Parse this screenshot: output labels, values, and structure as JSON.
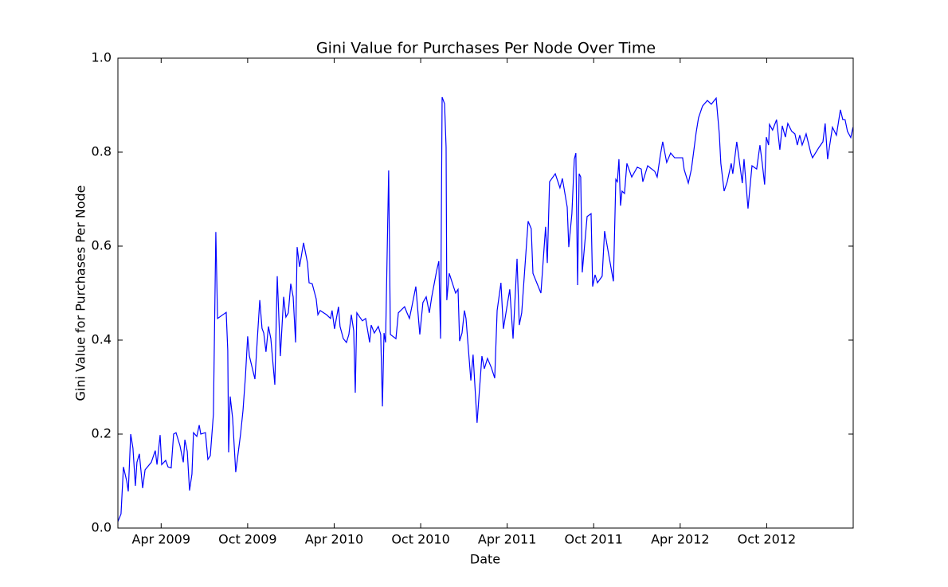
{
  "chart_data": {
    "type": "line",
    "title": "Gini Value for Purchases Per Node Over Time",
    "x_label": "Date",
    "y_label": "Gini Value for Purchases Per Node",
    "color": "#0000ff",
    "xlim": [
      2009.0,
      2013.25
    ],
    "xticks": [
      {
        "value": 2009.25,
        "label": "Apr 2009"
      },
      {
        "value": 2009.75,
        "label": "Oct 2009"
      },
      {
        "value": 2010.25,
        "label": "Apr 2010"
      },
      {
        "value": 2010.75,
        "label": "Oct 2010"
      },
      {
        "value": 2011.25,
        "label": "Apr 2011"
      },
      {
        "value": 2011.75,
        "label": "Oct 2011"
      },
      {
        "value": 2012.25,
        "label": "Apr 2012"
      },
      {
        "value": 2012.75,
        "label": "Oct 2012"
      }
    ],
    "ylim": [
      0,
      1
    ],
    "yticks": [
      {
        "value": 0,
        "label": "0.0"
      },
      0.2,
      0.4,
      0.6,
      0.8,
      {
        "value": 1,
        "label": "1.0"
      }
    ],
    "x": [
      2009.0,
      2009.018,
      2009.032,
      2009.051,
      2009.06,
      2009.074,
      2009.087,
      2009.101,
      2009.11,
      2009.124,
      2009.143,
      2009.157,
      2009.193,
      2009.216,
      2009.226,
      2009.244,
      2009.253,
      2009.276,
      2009.29,
      2009.308,
      2009.322,
      2009.336,
      2009.359,
      2009.378,
      2009.387,
      2009.401,
      2009.414,
      2009.428,
      2009.437,
      2009.456,
      2009.47,
      2009.479,
      2009.506,
      2009.52,
      2009.534,
      2009.552,
      2009.566,
      2009.576,
      2009.626,
      2009.635,
      2009.64,
      2009.649,
      2009.663,
      2009.681,
      2009.709,
      2009.723,
      2009.737,
      2009.75,
      2009.76,
      2009.792,
      2009.806,
      2009.82,
      2009.833,
      2009.843,
      2009.856,
      2009.87,
      2009.884,
      2009.907,
      2009.921,
      2009.939,
      2009.958,
      2009.971,
      2009.985,
      2009.999,
      2010.013,
      2010.027,
      2010.036,
      2010.05,
      2010.073,
      2010.096,
      2010.105,
      2010.123,
      2010.146,
      2010.156,
      2010.169,
      2010.206,
      2010.229,
      2010.238,
      2010.252,
      2010.275,
      2010.284,
      2010.303,
      2010.321,
      2010.335,
      2010.349,
      2010.363,
      2010.372,
      2010.381,
      2010.413,
      2010.432,
      2010.446,
      2010.455,
      2010.464,
      2010.482,
      2010.505,
      2010.519,
      2010.529,
      2010.538,
      2010.547,
      2010.565,
      2010.575,
      2010.607,
      2010.621,
      2010.657,
      2010.671,
      2010.685,
      2010.699,
      2010.722,
      2010.745,
      2010.763,
      2010.782,
      2010.8,
      2010.814,
      2010.842,
      2010.855,
      2010.865,
      2010.874,
      2010.888,
      2010.897,
      2010.901,
      2010.915,
      2010.952,
      2010.966,
      2010.975,
      2010.989,
      2011.003,
      2011.012,
      2011.04,
      2011.053,
      2011.076,
      2011.104,
      2011.118,
      2011.136,
      2011.159,
      2011.178,
      2011.192,
      2011.214,
      2011.228,
      2011.265,
      2011.284,
      2011.307,
      2011.32,
      2011.334,
      2011.371,
      2011.389,
      2011.399,
      2011.445,
      2011.472,
      2011.482,
      2011.495,
      2011.528,
      2011.555,
      2011.569,
      2011.597,
      2011.606,
      2011.624,
      2011.638,
      2011.647,
      2011.657,
      2011.666,
      2011.675,
      2011.684,
      2011.712,
      2011.735,
      2011.744,
      2011.758,
      2011.772,
      2011.799,
      2011.813,
      2011.864,
      2011.878,
      2011.887,
      2011.896,
      2011.905,
      2011.914,
      2011.928,
      2011.942,
      2011.97,
      2012.002,
      2012.025,
      2012.034,
      2012.062,
      2012.103,
      2012.117,
      2012.135,
      2012.149,
      2012.172,
      2012.195,
      2012.218,
      2012.264,
      2012.273,
      2012.297,
      2012.315,
      2012.342,
      2012.356,
      2012.379,
      2012.407,
      2012.43,
      2012.458,
      2012.476,
      2012.485,
      2012.504,
      2012.522,
      2012.545,
      2012.554,
      2012.577,
      2012.609,
      2012.619,
      2012.642,
      2012.665,
      2012.692,
      2012.711,
      2012.725,
      2012.738,
      2012.748,
      2012.761,
      2012.766,
      2012.784,
      2012.807,
      2012.826,
      2012.84,
      2012.858,
      2012.872,
      2012.895,
      2012.913,
      2012.927,
      2012.941,
      2012.955,
      2012.978,
      2013.005,
      2013.015,
      2013.052,
      2013.075,
      2013.088,
      2013.102,
      2013.13,
      2013.153,
      2013.176,
      2013.19,
      2013.203,
      2013.217,
      2013.236,
      2013.249
    ],
    "values": [
      0.014,
      0.03,
      0.13,
      0.1,
      0.078,
      0.2,
      0.17,
      0.09,
      0.14,
      0.158,
      0.085,
      0.124,
      0.14,
      0.165,
      0.135,
      0.198,
      0.135,
      0.144,
      0.13,
      0.128,
      0.2,
      0.203,
      0.175,
      0.14,
      0.188,
      0.163,
      0.08,
      0.115,
      0.203,
      0.195,
      0.219,
      0.2,
      0.203,
      0.146,
      0.154,
      0.242,
      0.63,
      0.446,
      0.459,
      0.378,
      0.161,
      0.28,
      0.234,
      0.119,
      0.2,
      0.25,
      0.322,
      0.408,
      0.366,
      0.317,
      0.403,
      0.485,
      0.425,
      0.415,
      0.375,
      0.429,
      0.403,
      0.305,
      0.536,
      0.366,
      0.492,
      0.449,
      0.458,
      0.52,
      0.492,
      0.395,
      0.598,
      0.556,
      0.607,
      0.564,
      0.522,
      0.52,
      0.488,
      0.454,
      0.463,
      0.454,
      0.446,
      0.463,
      0.424,
      0.471,
      0.429,
      0.403,
      0.395,
      0.412,
      0.454,
      0.42,
      0.288,
      0.458,
      0.441,
      0.446,
      0.415,
      0.395,
      0.432,
      0.415,
      0.429,
      0.412,
      0.259,
      0.415,
      0.395,
      0.761,
      0.412,
      0.403,
      0.458,
      0.471,
      0.458,
      0.446,
      0.471,
      0.514,
      0.412,
      0.48,
      0.492,
      0.458,
      0.492,
      0.547,
      0.568,
      0.403,
      0.917,
      0.903,
      0.81,
      0.485,
      0.542,
      0.5,
      0.508,
      0.398,
      0.415,
      0.463,
      0.446,
      0.314,
      0.369,
      0.224,
      0.366,
      0.339,
      0.361,
      0.341,
      0.319,
      0.463,
      0.522,
      0.424,
      0.508,
      0.403,
      0.573,
      0.432,
      0.458,
      0.653,
      0.637,
      0.542,
      0.5,
      0.641,
      0.564,
      0.737,
      0.754,
      0.724,
      0.744,
      0.683,
      0.598,
      0.669,
      0.785,
      0.798,
      0.517,
      0.754,
      0.747,
      0.544,
      0.663,
      0.669,
      0.514,
      0.539,
      0.522,
      0.536,
      0.632,
      0.525,
      0.742,
      0.737,
      0.785,
      0.686,
      0.717,
      0.712,
      0.776,
      0.747,
      0.768,
      0.764,
      0.737,
      0.771,
      0.759,
      0.747,
      0.793,
      0.822,
      0.778,
      0.798,
      0.788,
      0.788,
      0.763,
      0.734,
      0.764,
      0.841,
      0.873,
      0.898,
      0.91,
      0.902,
      0.915,
      0.839,
      0.776,
      0.717,
      0.737,
      0.776,
      0.754,
      0.822,
      0.734,
      0.785,
      0.68,
      0.771,
      0.764,
      0.815,
      0.774,
      0.731,
      0.832,
      0.815,
      0.859,
      0.847,
      0.869,
      0.805,
      0.856,
      0.832,
      0.861,
      0.844,
      0.839,
      0.815,
      0.836,
      0.815,
      0.839,
      0.798,
      0.788,
      0.81,
      0.822,
      0.861,
      0.785,
      0.853,
      0.836,
      0.89,
      0.869,
      0.869,
      0.844,
      0.831,
      0.853
    ]
  }
}
